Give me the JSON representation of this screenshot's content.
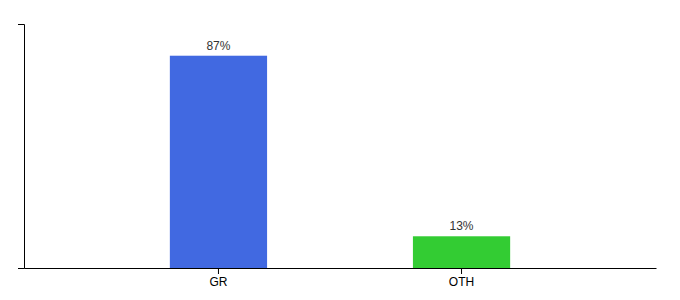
{
  "chart_data": {
    "type": "bar",
    "categories": [
      "GR",
      "OTH"
    ],
    "values": [
      87,
      13
    ],
    "value_labels": [
      "87%",
      "13%"
    ],
    "colors": [
      "#4169e1",
      "#33cc33"
    ],
    "ylim": [
      0,
      100
    ],
    "data_labels": true,
    "tick_labels": "x"
  }
}
